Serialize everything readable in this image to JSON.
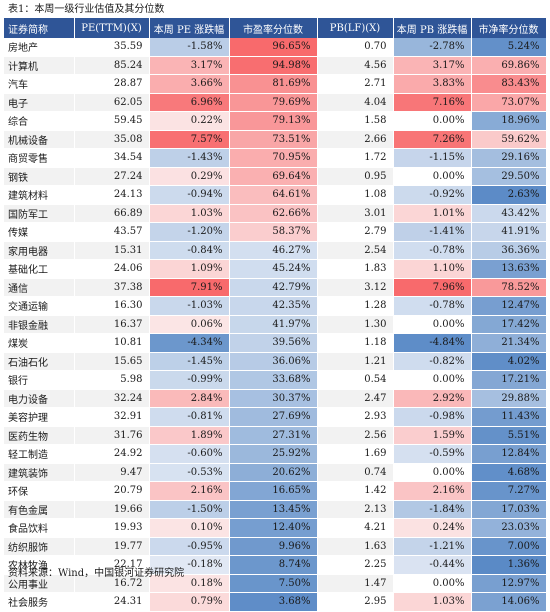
{
  "title": "表1：本周一级行业估值及其分位数",
  "source": "资料来源：Wind，中国银河证券研究院",
  "headers": [
    "证券简称",
    "PE(TTM)(X)",
    "本周 PE 涨跌幅",
    "市盈率分位数",
    "PB(LF)(X)",
    "本周 PB 涨跌幅",
    "市净率分位数"
  ],
  "colors": {
    "header": "#2f5597",
    "positive": "#f8696b",
    "negative": "#5a8ac6"
  },
  "rows": [
    {
      "name": "房地产",
      "pe": "35.59",
      "pe_chg": "-1.58%",
      "pe_pct": "96.65%",
      "pb": "0.70",
      "pb_chg": "-2.78%",
      "pb_pct": "5.24%"
    },
    {
      "name": "计算机",
      "pe": "85.24",
      "pe_chg": "3.17%",
      "pe_pct": "94.98%",
      "pb": "4.56",
      "pb_chg": "3.17%",
      "pb_pct": "69.86%"
    },
    {
      "name": "汽车",
      "pe": "28.87",
      "pe_chg": "3.66%",
      "pe_pct": "81.69%",
      "pb": "2.71",
      "pb_chg": "3.83%",
      "pb_pct": "83.43%"
    },
    {
      "name": "电子",
      "pe": "62.05",
      "pe_chg": "6.96%",
      "pe_pct": "79.69%",
      "pb": "4.04",
      "pb_chg": "7.16%",
      "pb_pct": "73.07%"
    },
    {
      "name": "综合",
      "pe": "59.45",
      "pe_chg": "0.22%",
      "pe_pct": "79.13%",
      "pb": "1.58",
      "pb_chg": "0.00%",
      "pb_pct": "18.96%"
    },
    {
      "name": "机械设备",
      "pe": "35.08",
      "pe_chg": "7.57%",
      "pe_pct": "73.51%",
      "pb": "2.66",
      "pb_chg": "7.26%",
      "pb_pct": "59.62%"
    },
    {
      "name": "商贸零售",
      "pe": "34.54",
      "pe_chg": "-1.43%",
      "pe_pct": "70.95%",
      "pb": "1.72",
      "pb_chg": "-1.15%",
      "pb_pct": "29.16%"
    },
    {
      "name": "钢铁",
      "pe": "27.24",
      "pe_chg": "0.29%",
      "pe_pct": "69.64%",
      "pb": "0.95",
      "pb_chg": "0.00%",
      "pb_pct": "29.50%"
    },
    {
      "name": "建筑材料",
      "pe": "24.13",
      "pe_chg": "-0.94%",
      "pe_pct": "64.61%",
      "pb": "1.08",
      "pb_chg": "-0.92%",
      "pb_pct": "2.63%"
    },
    {
      "name": "国防军工",
      "pe": "66.89",
      "pe_chg": "1.03%",
      "pe_pct": "62.66%",
      "pb": "3.01",
      "pb_chg": "1.01%",
      "pb_pct": "43.42%"
    },
    {
      "name": "传媒",
      "pe": "43.57",
      "pe_chg": "-1.20%",
      "pe_pct": "58.37%",
      "pb": "2.79",
      "pb_chg": "-1.41%",
      "pb_pct": "41.91%"
    },
    {
      "name": "家用电器",
      "pe": "15.31",
      "pe_chg": "-0.84%",
      "pe_pct": "46.27%",
      "pb": "2.54",
      "pb_chg": "-0.78%",
      "pb_pct": "36.36%"
    },
    {
      "name": "基础化工",
      "pe": "24.06",
      "pe_chg": "1.09%",
      "pe_pct": "45.24%",
      "pb": "1.83",
      "pb_chg": "1.10%",
      "pb_pct": "13.63%"
    },
    {
      "name": "通信",
      "pe": "37.38",
      "pe_chg": "7.91%",
      "pe_pct": "42.79%",
      "pb": "3.12",
      "pb_chg": "7.96%",
      "pb_pct": "78.52%"
    },
    {
      "name": "交通运输",
      "pe": "16.30",
      "pe_chg": "-1.03%",
      "pe_pct": "42.35%",
      "pb": "1.28",
      "pb_chg": "-0.78%",
      "pb_pct": "12.47%"
    },
    {
      "name": "非银金融",
      "pe": "16.37",
      "pe_chg": "0.06%",
      "pe_pct": "41.97%",
      "pb": "1.30",
      "pb_chg": "0.00%",
      "pb_pct": "17.42%"
    },
    {
      "name": "煤炭",
      "pe": "10.81",
      "pe_chg": "-4.34%",
      "pe_pct": "39.56%",
      "pb": "1.18",
      "pb_chg": "-4.84%",
      "pb_pct": "21.34%"
    },
    {
      "name": "石油石化",
      "pe": "15.65",
      "pe_chg": "-1.45%",
      "pe_pct": "36.06%",
      "pb": "1.21",
      "pb_chg": "-0.82%",
      "pb_pct": "4.02%"
    },
    {
      "name": "银行",
      "pe": "5.98",
      "pe_chg": "-0.99%",
      "pe_pct": "33.68%",
      "pb": "0.54",
      "pb_chg": "0.00%",
      "pb_pct": "17.21%"
    },
    {
      "name": "电力设备",
      "pe": "32.24",
      "pe_chg": "2.84%",
      "pe_pct": "30.37%",
      "pb": "2.47",
      "pb_chg": "2.92%",
      "pb_pct": "29.88%"
    },
    {
      "name": "美容护理",
      "pe": "32.91",
      "pe_chg": "-0.81%",
      "pe_pct": "27.69%",
      "pb": "2.93",
      "pb_chg": "-0.98%",
      "pb_pct": "11.43%"
    },
    {
      "name": "医药生物",
      "pe": "31.76",
      "pe_chg": "1.89%",
      "pe_pct": "27.31%",
      "pb": "2.56",
      "pb_chg": "1.59%",
      "pb_pct": "5.51%"
    },
    {
      "name": "轻工制造",
      "pe": "24.92",
      "pe_chg": "-0.60%",
      "pe_pct": "25.92%",
      "pb": "1.69",
      "pb_chg": "-0.59%",
      "pb_pct": "12.84%"
    },
    {
      "name": "建筑装饰",
      "pe": "9.47",
      "pe_chg": "-0.53%",
      "pe_pct": "20.62%",
      "pb": "0.74",
      "pb_chg": "0.00%",
      "pb_pct": "4.68%"
    },
    {
      "name": "环保",
      "pe": "20.79",
      "pe_chg": "2.16%",
      "pe_pct": "16.65%",
      "pb": "1.42",
      "pb_chg": "2.16%",
      "pb_pct": "7.27%"
    },
    {
      "name": "有色金属",
      "pe": "19.66",
      "pe_chg": "-1.50%",
      "pe_pct": "13.45%",
      "pb": "2.13",
      "pb_chg": "-1.84%",
      "pb_pct": "17.03%"
    },
    {
      "name": "食品饮料",
      "pe": "19.93",
      "pe_chg": "0.10%",
      "pe_pct": "12.40%",
      "pb": "4.21",
      "pb_chg": "0.24%",
      "pb_pct": "23.03%"
    },
    {
      "name": "纺织服饰",
      "pe": "19.77",
      "pe_chg": "-0.95%",
      "pe_pct": "9.96%",
      "pb": "1.63",
      "pb_chg": "-1.21%",
      "pb_pct": "7.00%"
    },
    {
      "name": "农林牧渔",
      "pe": "22.17",
      "pe_chg": "-0.18%",
      "pe_pct": "8.74%",
      "pb": "2.25",
      "pb_chg": "-0.44%",
      "pb_pct": "1.36%"
    },
    {
      "name": "公用事业",
      "pe": "16.72",
      "pe_chg": "0.18%",
      "pe_pct": "7.50%",
      "pb": "1.47",
      "pb_chg": "0.00%",
      "pb_pct": "12.97%"
    },
    {
      "name": "社会服务",
      "pe": "24.31",
      "pe_chg": "0.79%",
      "pe_pct": "3.68%",
      "pb": "2.95",
      "pb_chg": "1.03%",
      "pb_pct": "14.06%"
    }
  ]
}
